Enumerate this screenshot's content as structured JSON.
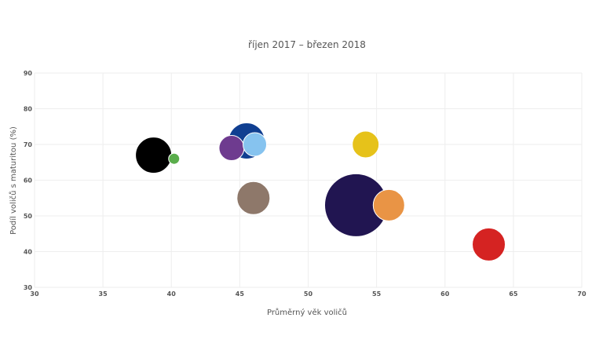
{
  "chart_data": {
    "type": "scatter",
    "title": "říjen 2017 – březen 2018",
    "xlabel": "Průměrný věk voličů",
    "ylabel": "Podíl voličů s maturitou (%)",
    "xlim": [
      30,
      70
    ],
    "ylim": [
      30,
      90
    ],
    "x_ticks": [
      30,
      35,
      40,
      45,
      50,
      55,
      60,
      65,
      70
    ],
    "y_ticks": [
      30,
      40,
      50,
      60,
      70,
      80,
      90
    ],
    "grid": true,
    "legend": "none",
    "points": [
      {
        "x": 53.5,
        "y": 53,
        "size": 40,
        "color": "#211551"
      },
      {
        "x": 45.5,
        "y": 71,
        "size": 23,
        "color": "#103f91"
      },
      {
        "x": 38.7,
        "y": 67,
        "size": 23,
        "color": "#000000"
      },
      {
        "x": 63.2,
        "y": 42,
        "size": 21,
        "color": "#d52322"
      },
      {
        "x": 46.0,
        "y": 55,
        "size": 21,
        "color": "#8e786a"
      },
      {
        "x": 55.9,
        "y": 53,
        "size": 20,
        "color": "#e99445"
      },
      {
        "x": 54.2,
        "y": 70,
        "size": 17,
        "color": "#e6c21a"
      },
      {
        "x": 44.4,
        "y": 69,
        "size": 16,
        "color": "#6e3b8f"
      },
      {
        "x": 46.1,
        "y": 70,
        "size": 15,
        "color": "#86c3ef"
      },
      {
        "x": 40.2,
        "y": 66,
        "size": 7,
        "color": "#5aad4c"
      }
    ]
  }
}
